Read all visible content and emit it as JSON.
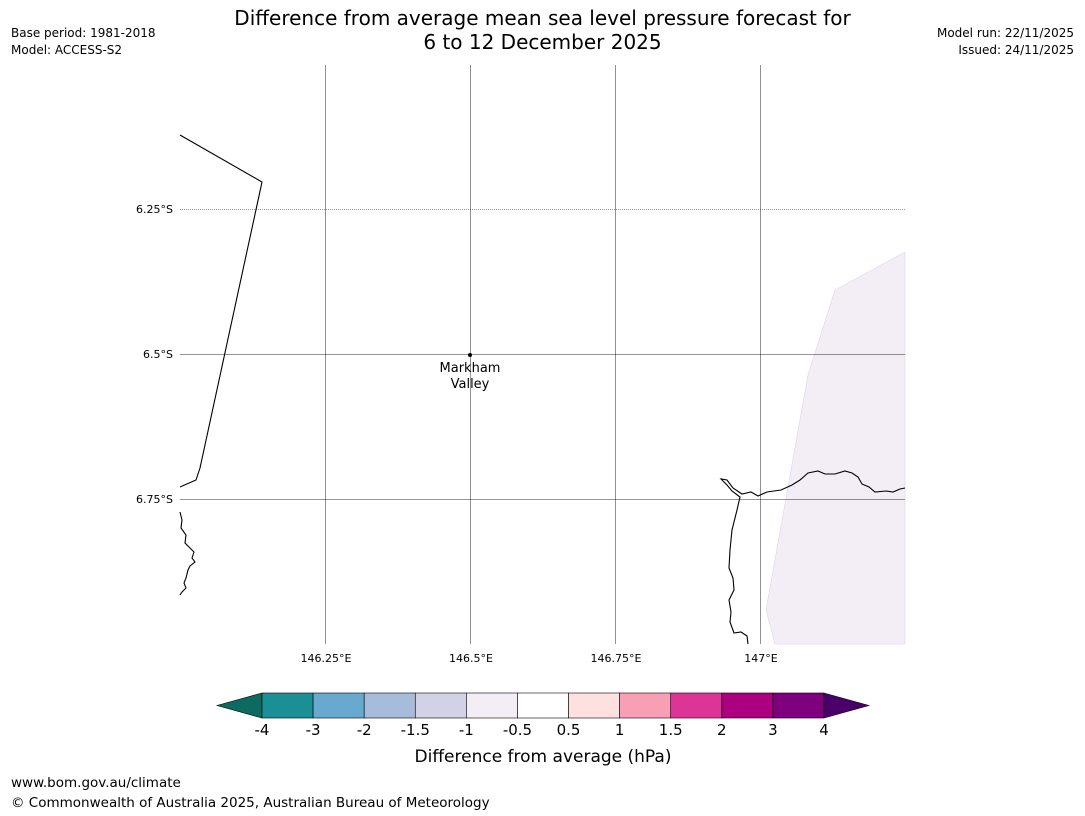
{
  "header": {
    "base_period": "Base period: 1981-2018",
    "model": "Model: ACCESS-S2",
    "title_line1": "Difference from average mean sea level pressure forecast for",
    "title_line2": "6 to 12 December 2025",
    "model_run": "Model run: 22/11/2025",
    "issued": "Issued: 24/11/2025"
  },
  "map": {
    "lat_labels": [
      "6.25°S",
      "6.5°S",
      "6.75°S"
    ],
    "lon_labels": [
      "146.25°E",
      "146.5°E",
      "146.75°E",
      "147°E"
    ],
    "place": {
      "name_line1": "Markham",
      "name_line2": "Valley"
    },
    "anomaly_shading_color": "#f3eef5",
    "coastline_color": "#000000",
    "gridline_color": "#000000"
  },
  "colorbar": {
    "label": "Difference from average (hPa)",
    "ticks": [
      "-4",
      "-3",
      "-2",
      "-1.5",
      "-1",
      "-0.5",
      "0.5",
      "1",
      "1.5",
      "2",
      "3",
      "4"
    ],
    "low_extend_color": "#0a6b5e",
    "high_extend_color": "#4b0069",
    "colors": [
      "#1a9096",
      "#68a9d0",
      "#a7bbdb",
      "#d2d1e6",
      "#f3eef5",
      "#ffffff",
      "#fde0df",
      "#f89fb6",
      "#dc3596",
      "#ab0080",
      "#7e007d"
    ]
  },
  "footer": {
    "url": "www.bom.gov.au/climate",
    "copyright": "© Commonwealth of Australia 2025, Australian Bureau of Meteorology"
  }
}
